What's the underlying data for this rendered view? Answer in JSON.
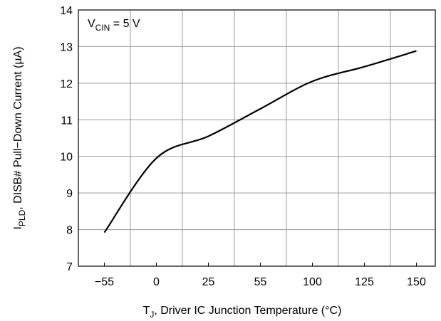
{
  "chart_data": {
    "type": "line",
    "categories": [
      "−55",
      "0",
      "25",
      "55",
      "100",
      "125",
      "150"
    ],
    "series": [
      {
        "color": "#000000",
        "values": [
          7.92,
          9.95,
          10.55,
          11.3,
          12.05,
          12.45,
          12.88
        ]
      }
    ],
    "ylim": [
      7,
      14
    ],
    "yticks": [
      7,
      8,
      9,
      10,
      11,
      12,
      13,
      14
    ],
    "grid": true,
    "annotation": [
      "V",
      "CIN",
      " = 5 V"
    ],
    "ylabel": [
      "I",
      "PLD",
      ", DISB# Pull−Down Current (µA)"
    ],
    "xlabel": [
      "T",
      "J",
      ", Driver IC Junction Temperature (°C)"
    ]
  }
}
